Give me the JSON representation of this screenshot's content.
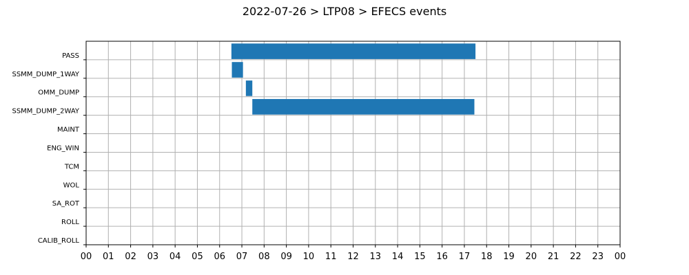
{
  "chart_data": {
    "type": "gantt",
    "title": "2022-07-26 > LTP08 > EFECS events",
    "xlabel": "",
    "ylabel": "",
    "x_ticks": [
      "00",
      "01",
      "02",
      "03",
      "04",
      "05",
      "06",
      "07",
      "08",
      "09",
      "10",
      "11",
      "12",
      "13",
      "14",
      "15",
      "16",
      "17",
      "18",
      "19",
      "20",
      "21",
      "22",
      "23",
      "00"
    ],
    "xlim": [
      0,
      24
    ],
    "grid": true,
    "categories": [
      "PASS",
      "SSMM_DUMP_1WAY",
      "OMM_DUMP",
      "SSMM_DUMP_2WAY",
      "MAINT",
      "ENG_WIN",
      "TCM",
      "WOL",
      "SA_ROT",
      "ROLL",
      "CALIB_ROLL"
    ],
    "bar_color": "#1f77b4",
    "events": [
      {
        "category": "PASS",
        "start": 6.53,
        "end": 17.5
      },
      {
        "category": "SSMM_DUMP_1WAY",
        "start": 6.55,
        "end": 7.05
      },
      {
        "category": "OMM_DUMP",
        "start": 7.18,
        "end": 7.47
      },
      {
        "category": "SSMM_DUMP_2WAY",
        "start": 7.47,
        "end": 17.45
      }
    ]
  }
}
